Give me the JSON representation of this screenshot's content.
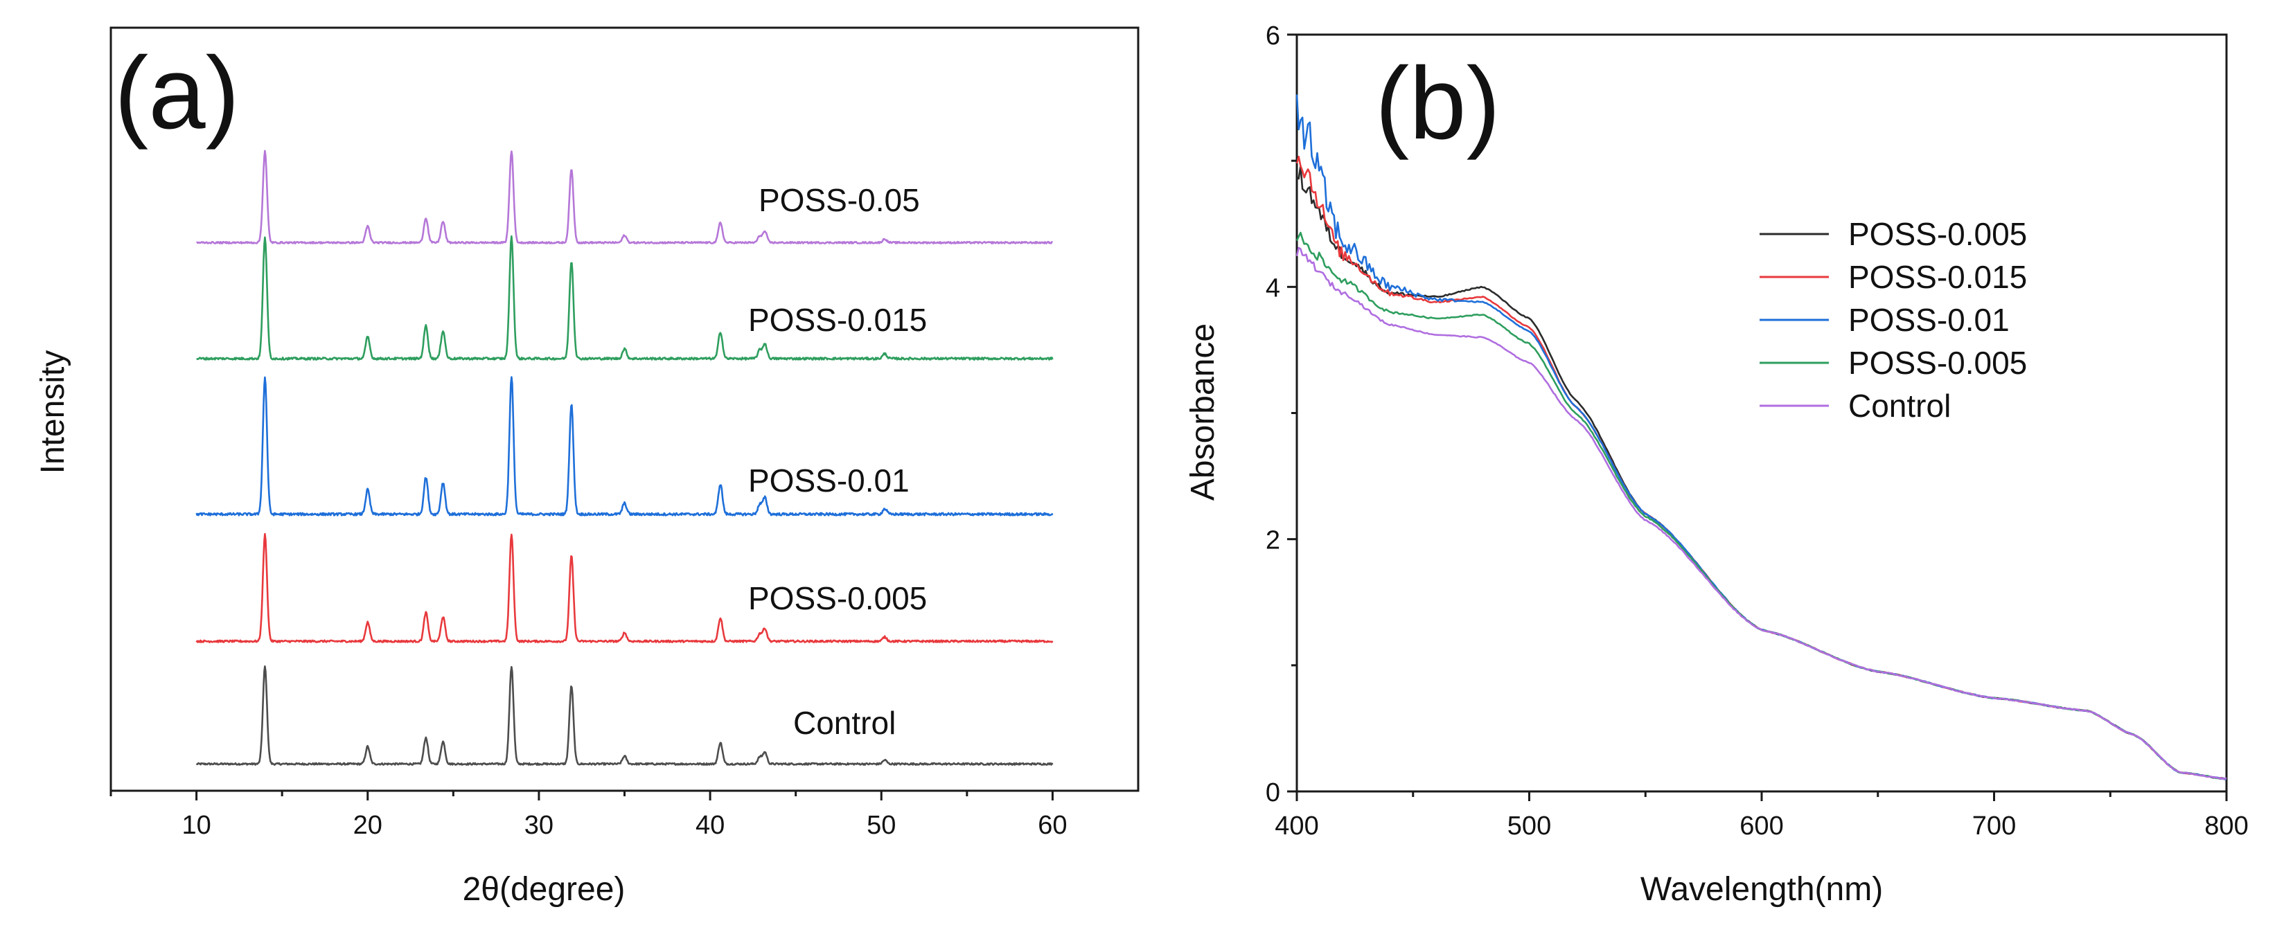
{
  "chart_data": [
    {
      "type": "line",
      "panel_label": "(a)",
      "xlabel": "2θ(degree)",
      "ylabel": "Intensity",
      "xlim": [
        5,
        65
      ],
      "xticks": [
        "10",
        "20",
        "30",
        "40",
        "50",
        "60"
      ],
      "yticks": [],
      "grid": false,
      "peaks_2theta": [
        14.0,
        20.0,
        23.4,
        24.4,
        28.4,
        31.9,
        35.0,
        40.6,
        42.9,
        43.2,
        50.2
      ],
      "peak_rel_intensity": [
        1.0,
        0.18,
        0.27,
        0.23,
        1.0,
        0.8,
        0.08,
        0.22,
        0.07,
        0.12,
        0.04
      ],
      "series": [
        {
          "name": "Control",
          "color": "#4d4d4d",
          "offset": 0,
          "scale": 0.64
        },
        {
          "name": "POSS-0.005",
          "color": "#e8393d",
          "offset": 1,
          "scale": 0.7
        },
        {
          "name": "POSS-0.01",
          "color": "#1e6fd9",
          "offset": 2,
          "scale": 0.9
        },
        {
          "name": "POSS-0.015",
          "color": "#2e9e5e",
          "offset": 3,
          "scale": 0.8
        },
        {
          "name": "POSS-0.05",
          "color": "#b577d8",
          "offset": 4,
          "scale": 0.6
        }
      ]
    },
    {
      "type": "line",
      "panel_label": "(b)",
      "xlabel": "Wavelength(nm)",
      "ylabel": "Absorbance",
      "xlim": [
        400,
        800
      ],
      "ylim": [
        0,
        6
      ],
      "xticks": [
        "400",
        "500",
        "600",
        "700",
        "800"
      ],
      "yticks": [
        "0",
        "2",
        "4",
        "6"
      ],
      "grid": false,
      "legend_position": "top-right",
      "series": [
        {
          "name": "POSS-0.005",
          "color": "#2b2b2b",
          "x": [
            400,
            420,
            440,
            460,
            480,
            500,
            520,
            550,
            600,
            650,
            700,
            740,
            760,
            780,
            800
          ],
          "y": [
            4.9,
            4.25,
            3.95,
            3.92,
            4.0,
            3.75,
            3.1,
            2.2,
            1.28,
            0.95,
            0.74,
            0.64,
            0.45,
            0.15,
            0.1
          ]
        },
        {
          "name": "POSS-0.015",
          "color": "#e8393d",
          "x": [
            400,
            420,
            440,
            460,
            480,
            500,
            520,
            550,
            600,
            650,
            700,
            740,
            760,
            780,
            800
          ],
          "y": [
            5.05,
            4.25,
            3.95,
            3.88,
            3.92,
            3.68,
            3.05,
            2.2,
            1.28,
            0.95,
            0.74,
            0.64,
            0.45,
            0.15,
            0.1
          ]
        },
        {
          "name": "POSS-0.01",
          "color": "#1e6fd9",
          "x": [
            400,
            420,
            440,
            460,
            480,
            500,
            520,
            550,
            600,
            650,
            700,
            740,
            760,
            780,
            800
          ],
          "y": [
            5.4,
            4.35,
            4.0,
            3.9,
            3.88,
            3.65,
            3.05,
            2.2,
            1.28,
            0.95,
            0.74,
            0.64,
            0.45,
            0.15,
            0.1
          ]
        },
        {
          "name": "POSS-0.005",
          "color": "#2e9e5e",
          "x": [
            400,
            420,
            440,
            460,
            480,
            500,
            520,
            550,
            600,
            650,
            700,
            740,
            760,
            780,
            800
          ],
          "y": [
            4.4,
            4.05,
            3.8,
            3.75,
            3.78,
            3.55,
            3.0,
            2.18,
            1.28,
            0.95,
            0.74,
            0.64,
            0.45,
            0.15,
            0.1
          ]
        },
        {
          "name": "Control",
          "color": "#b06ee0",
          "x": [
            400,
            420,
            440,
            460,
            480,
            500,
            520,
            550,
            600,
            650,
            700,
            740,
            760,
            780,
            800
          ],
          "y": [
            4.28,
            3.95,
            3.7,
            3.62,
            3.6,
            3.4,
            2.95,
            2.15,
            1.28,
            0.95,
            0.74,
            0.64,
            0.45,
            0.15,
            0.1
          ]
        }
      ]
    }
  ]
}
